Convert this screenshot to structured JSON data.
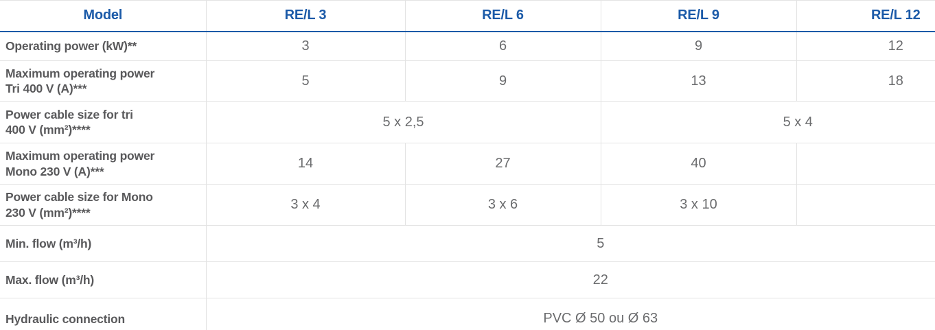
{
  "table": {
    "header": {
      "model_label": "Model",
      "columns": [
        "RE/L 3",
        "RE/L 6",
        "RE/L 9",
        "RE/L 12"
      ]
    },
    "rows": [
      {
        "label": "Operating power (kW)**",
        "cells": [
          {
            "text": "3",
            "span": 1
          },
          {
            "text": "6",
            "span": 1
          },
          {
            "text": "9",
            "span": 1
          },
          {
            "text": "12",
            "span": 1
          }
        ]
      },
      {
        "label": "Maximum operating power\nTri 400 V (A)***",
        "cells": [
          {
            "text": "5",
            "span": 1
          },
          {
            "text": "9",
            "span": 1
          },
          {
            "text": "13",
            "span": 1
          },
          {
            "text": "18",
            "span": 1
          }
        ]
      },
      {
        "label": "Power cable size for tri\n400 V (mm²)****",
        "cells": [
          {
            "text": "5 x 2,5",
            "span": 2
          },
          {
            "text": "5 x 4",
            "span": 2
          }
        ]
      },
      {
        "label": "Maximum operating power\nMono 230 V (A)***",
        "cells": [
          {
            "text": "14",
            "span": 1
          },
          {
            "text": "27",
            "span": 1
          },
          {
            "text": "40",
            "span": 1
          },
          {
            "text": "",
            "span": 1
          }
        ]
      },
      {
        "label": "Power cable size for Mono\n230 V (mm²)****",
        "cells": [
          {
            "text": "3 x 4",
            "span": 1
          },
          {
            "text": "3 x 6",
            "span": 1
          },
          {
            "text": "3 x 10",
            "span": 1
          },
          {
            "text": "",
            "span": 1
          }
        ]
      },
      {
        "label": "Min. flow (m³/h)",
        "cells": [
          {
            "text": "5",
            "span": 4
          }
        ]
      },
      {
        "label": "Max. flow (m³/h)",
        "cells": [
          {
            "text": "22",
            "span": 4
          }
        ]
      },
      {
        "label": "Hydraulic connection",
        "cells": [
          {
            "text": "PVC Ø 50 ou Ø 63",
            "span": 4
          }
        ]
      }
    ]
  },
  "colors": {
    "header_text": "#1b5aa8",
    "header_underline": "#1b5aa8",
    "grid_line": "#e3e3e3",
    "label_text": "#59595b",
    "value_text": "#6b6c6e",
    "background": "#ffffff"
  }
}
